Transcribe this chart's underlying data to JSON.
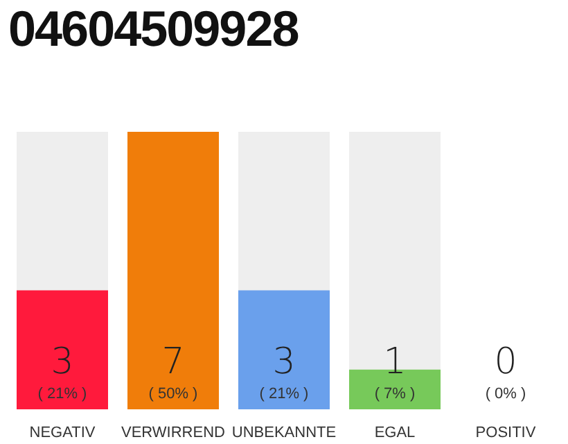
{
  "chart_data": {
    "type": "bar",
    "title": "04604509928",
    "categories": [
      "NEGATIV",
      "VERWIRREND",
      "UNBEKANNTE",
      "EGAL",
      "POSITIV"
    ],
    "values": [
      3,
      7,
      3,
      1,
      0
    ],
    "colors": [
      "#ff1a3c",
      "#f07d0a",
      "#6aa0ec",
      "#77c95a",
      "#cccccc"
    ],
    "ylim": [
      0,
      7
    ],
    "data_labels": true,
    "tick_labels": "x",
    "grid": false,
    "legend": false,
    "annotations": [
      "( 21% )",
      "( 50% )",
      "( 21% )",
      "( 7% )",
      "( 0% )"
    ]
  }
}
